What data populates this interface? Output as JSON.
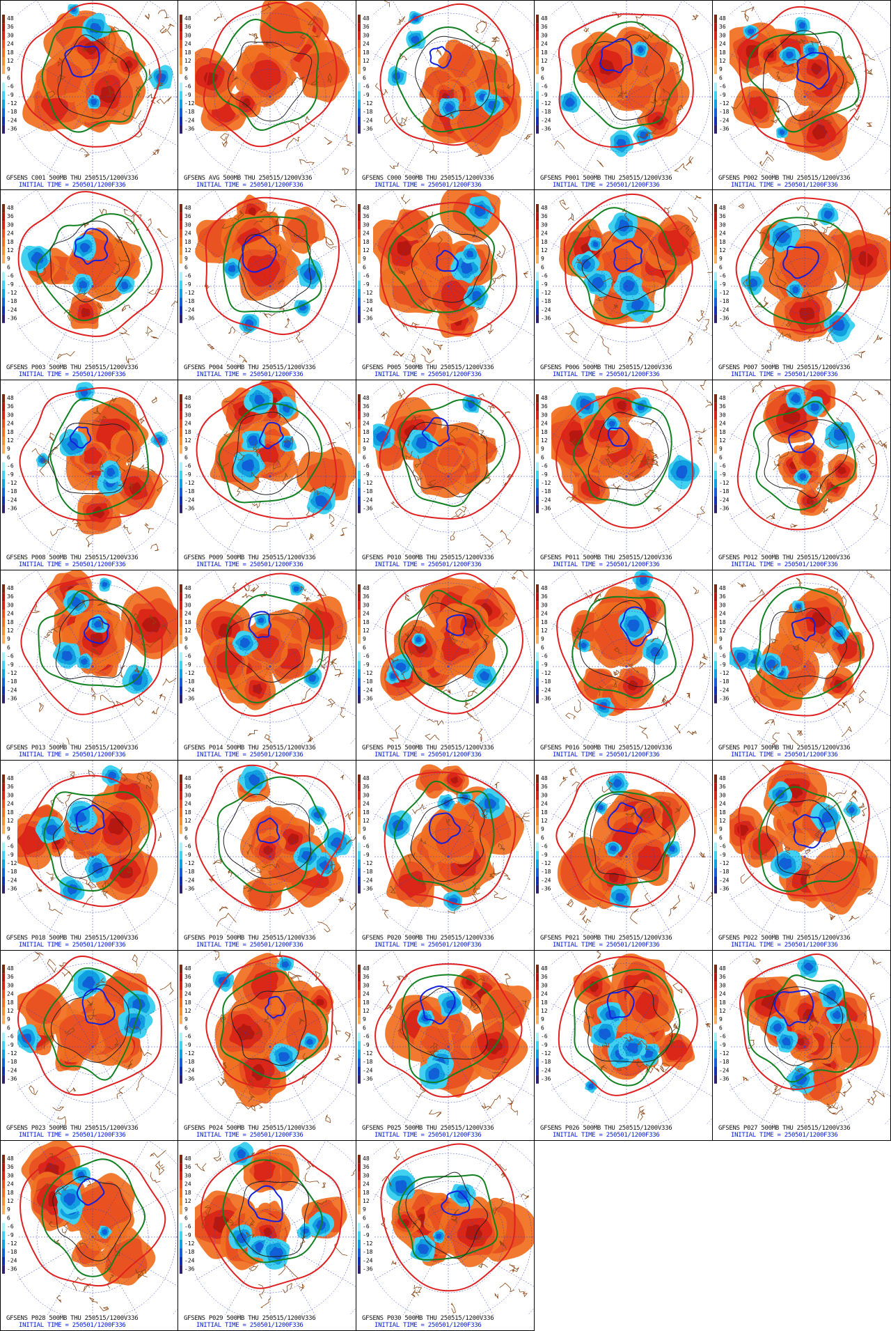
{
  "colorbar": {
    "labels": [
      "48",
      "36",
      "30",
      "24",
      "18",
      "12",
      "9",
      "6",
      "-6",
      "-9",
      "-12",
      "-18",
      "-24",
      "-36"
    ],
    "colors": [
      "#7a2a10",
      "#b31810",
      "#d82418",
      "#e85020",
      "#f07020",
      "#f59030",
      "#f8b060",
      "#ffffff",
      "#a8f0f8",
      "#40d0f0",
      "#10a0e0",
      "#1060d8",
      "#1030b0",
      "#302070"
    ]
  },
  "contour_colors": {
    "height": "#e02020",
    "green": "#108020",
    "blue": "#1020e0",
    "black": "#202020",
    "coast": "#8b4513",
    "grid": "#3040d0"
  },
  "panels": [
    {
      "title": "GFSENS C001 500MB THU 250515/1200V336",
      "init": "INITIAL TIME = 250501/1200F336"
    },
    {
      "title": "GFSENS AVG 500MB THU 250515/1200V336",
      "init": "INITIAL TIME = 250501/1200F336"
    },
    {
      "title": "GFSENS C000 500MB THU 250515/1200V336",
      "init": "INITIAL TIME = 250501/1200F336"
    },
    {
      "title": "GFSENS P001 500MB THU 250515/1200V336",
      "init": "INITIAL TIME = 250501/1200F336"
    },
    {
      "title": "GFSENS P002 500MB THU 250515/1200V336",
      "init": "INITIAL TIME = 250501/1200F336"
    },
    {
      "title": "GFSENS P003 500MB THU 250515/1200V336",
      "init": "INITIAL TIME = 250501/1200F336"
    },
    {
      "title": "GFSENS P004 500MB THU 250515/1200V336",
      "init": "INITIAL TIME = 250501/1200F336"
    },
    {
      "title": "GFSENS P005 500MB THU 250515/1200V336",
      "init": "INITIAL TIME = 250501/1200F336"
    },
    {
      "title": "GFSENS P006 500MB THU 250515/1200V336",
      "init": "INITIAL TIME = 250501/1200F336"
    },
    {
      "title": "GFSENS P007 500MB THU 250515/1200V336",
      "init": "INITIAL TIME = 250501/1200F336"
    },
    {
      "title": "GFSENS P008 500MB THU 250515/1200V336",
      "init": "INITIAL TIME = 250501/1200F336"
    },
    {
      "title": "GFSENS P009 500MB THU 250515/1200V336",
      "init": "INITIAL TIME = 250501/1200F336"
    },
    {
      "title": "GFSENS P010 500MB THU 250515/1200V336",
      "init": "INITIAL TIME = 250501/1200F336"
    },
    {
      "title": "GFSENS P011 500MB THU 250515/1200V336",
      "init": "INITIAL TIME = 250501/1200F336"
    },
    {
      "title": "GFSENS P012 500MB THU 250515/1200V336",
      "init": "INITIAL TIME = 250501/1200F336"
    },
    {
      "title": "GFSENS P013 500MB THU 250515/1200V336",
      "init": "INITIAL TIME = 250501/1200F336"
    },
    {
      "title": "GFSENS P014 500MB THU 250515/1200V336",
      "init": "INITIAL TIME = 250501/1200F336"
    },
    {
      "title": "GFSENS P015 500MB THU 250515/1200V336",
      "init": "INITIAL TIME = 250501/1200F336"
    },
    {
      "title": "GFSENS P016 500MB THU 250515/1200V336",
      "init": "INITIAL TIME = 250501/1200F336"
    },
    {
      "title": "GFSENS P017 500MB THU 250515/1200V336",
      "init": "INITIAL TIME = 250501/1200F336"
    },
    {
      "title": "GFSENS P018 500MB THU 250515/1200V336",
      "init": "INITIAL TIME = 250501/1200F336"
    },
    {
      "title": "GFSENS P019 500MB THU 250515/1200V336",
      "init": "INITIAL TIME = 250501/1200F336"
    },
    {
      "title": "GFSENS P020 500MB THU 250515/1200V336",
      "init": "INITIAL TIME = 250501/1200F336"
    },
    {
      "title": "GFSENS P021 500MB THU 250515/1200V336",
      "init": "INITIAL TIME = 250501/1200F336"
    },
    {
      "title": "GFSENS P022 500MB THU 250515/1200V336",
      "init": "INITIAL TIME = 250501/1200F336"
    },
    {
      "title": "GFSENS P023 500MB THU 250515/1200V336",
      "init": "INITIAL TIME = 250501/1200F336"
    },
    {
      "title": "GFSENS P024 500MB THU 250515/1200V336",
      "init": "INITIAL TIME = 250501/1200F336"
    },
    {
      "title": "GFSENS P025 500MB THU 250515/1200V336",
      "init": "INITIAL TIME = 250501/1200F336"
    },
    {
      "title": "GFSENS P026 500MB THU 250515/1200V336",
      "init": "INITIAL TIME = 250501/1200F336"
    },
    {
      "title": "GFSENS P027 500MB THU 250515/1200V336",
      "init": "INITIAL TIME = 250501/1200F336"
    },
    {
      "title": "GFSENS P028 500MB THU 250515/1200V336",
      "init": "INITIAL TIME = 250501/1200F336"
    },
    {
      "title": "GFSENS P029 500MB THU 250515/1200V336",
      "init": "INITIAL TIME = 250501/1200F336"
    },
    {
      "title": "GFSENS P030 500MB THU 250515/1200V336",
      "init": "INITIAL TIME = 250501/1200F336"
    }
  ]
}
